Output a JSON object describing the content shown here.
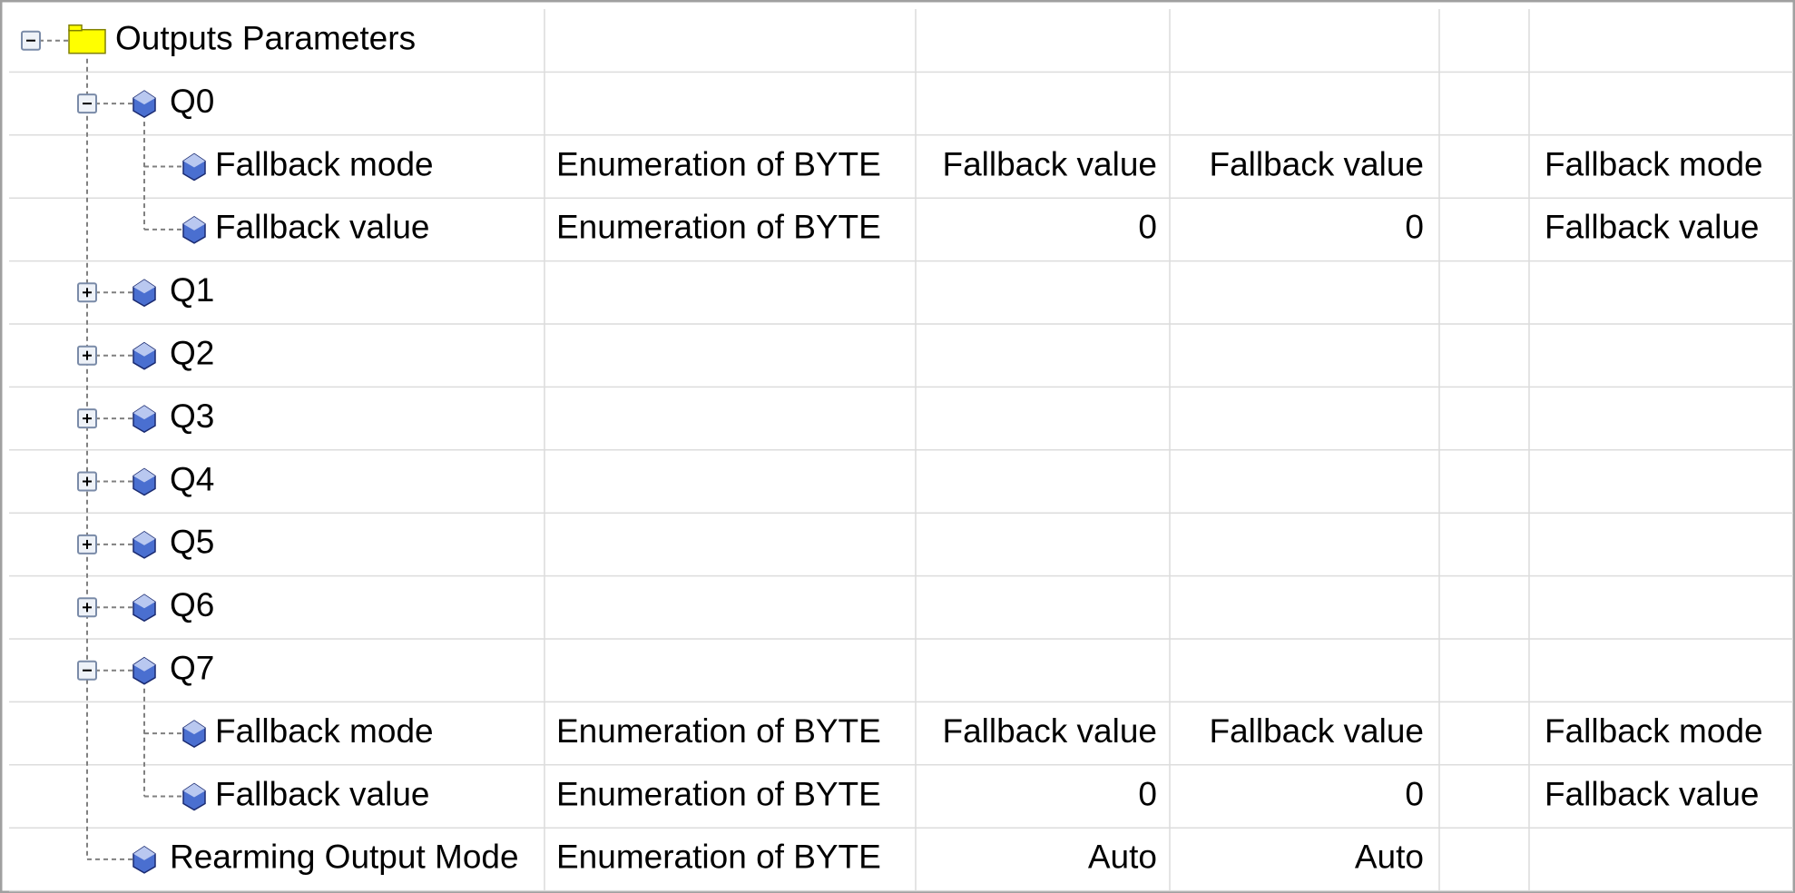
{
  "rows": [
    {
      "name": "Outputs Parameters",
      "level": 0,
      "expanded": true
    },
    {
      "name": "Q0",
      "level": 1,
      "expanded": true
    },
    {
      "name": "Fallback mode",
      "level": 2,
      "type": "Enumeration of BYTE",
      "default": "Fallback value",
      "value": "Fallback value",
      "description": "Fallback mode"
    },
    {
      "name": "Fallback value",
      "level": 2,
      "type": "Enumeration of BYTE",
      "default": "0",
      "value": "0",
      "description": "Fallback value"
    },
    {
      "name": "Q1",
      "level": 1,
      "expanded": false
    },
    {
      "name": "Q2",
      "level": 1,
      "expanded": false
    },
    {
      "name": "Q3",
      "level": 1,
      "expanded": false
    },
    {
      "name": "Q4",
      "level": 1,
      "expanded": false
    },
    {
      "name": "Q5",
      "level": 1,
      "expanded": false
    },
    {
      "name": "Q6",
      "level": 1,
      "expanded": false
    },
    {
      "name": "Q7",
      "level": 1,
      "expanded": true
    },
    {
      "name": "Fallback mode",
      "level": 2,
      "type": "Enumeration of BYTE",
      "default": "Fallback value",
      "value": "Fallback value",
      "description": "Fallback mode"
    },
    {
      "name": "Fallback value",
      "level": 2,
      "type": "Enumeration of BYTE",
      "default": "0",
      "value": "0",
      "description": "Fallback value"
    },
    {
      "name": "Rearming Output Mode",
      "level": 1,
      "type": "Enumeration of BYTE",
      "default": "Auto",
      "value": "Auto"
    }
  ]
}
